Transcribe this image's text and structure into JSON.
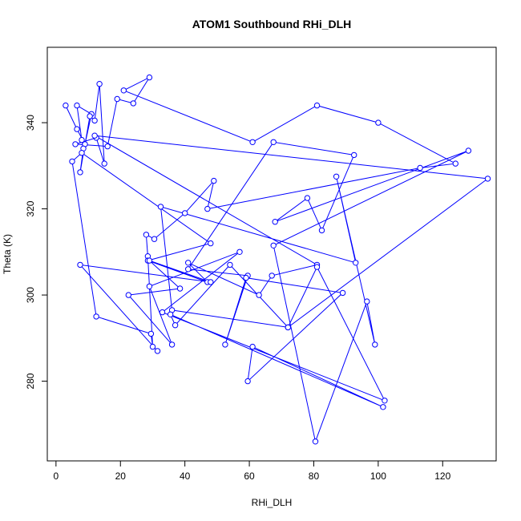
{
  "chart_data": {
    "type": "line",
    "title": "ATOM1 Southbound RHi_DLH",
    "xlabel": "RHi_DLH",
    "ylabel": "Theta (K)",
    "xlim": [
      -2.7,
      136.6
    ],
    "ylim": [
      261.5,
      357.5
    ],
    "xticks": [
      0,
      20,
      40,
      60,
      80,
      100,
      120
    ],
    "yticks": [
      280,
      300,
      320,
      340
    ],
    "grid": false,
    "series": [
      {
        "color": "#0000ff",
        "x": [
          3.0,
          6.5,
          9.0,
          11.0,
          6.5,
          8.0,
          8.5,
          7.5,
          10.5,
          12.0,
          13.5,
          15.0,
          12.5,
          6.0,
          16.0,
          19.0,
          24.0,
          29.0,
          21.0,
          61.0,
          81.0,
          100.0,
          124.0,
          113.0,
          47.0,
          49.0,
          40.0,
          30.5,
          28.0,
          28.5,
          30.0,
          29.5,
          12.5,
          5.0,
          8.0,
          48.0,
          28.5,
          47.0,
          41.0,
          63.0,
          67.0,
          81.0,
          12.0,
          134.0,
          72.0,
          36.0,
          32.5,
          93.0,
          87.0,
          99.0,
          96.5,
          80.5,
          67.5,
          128.0,
          68.0,
          78.0,
          82.5,
          92.5,
          67.5,
          41.0,
          59.5,
          52.5,
          59.0,
          89.0,
          59.5,
          61.0,
          101.5,
          35.5,
          37.0,
          54.0,
          72.0,
          81.0,
          102.0,
          33.0,
          57.0,
          29.0,
          36.0,
          22.5,
          38.5,
          29.0,
          48.0,
          7.5,
          31.5
        ],
        "y": [
          344,
          338.5,
          335,
          342,
          344,
          336,
          334,
          328.5,
          341.5,
          340.5,
          349,
          330.5,
          336.5,
          335,
          334.5,
          345.5,
          344.5,
          350.5,
          347.5,
          335.5,
          344,
          340,
          330.5,
          329.5,
          320,
          326.5,
          319,
          313,
          314,
          309,
          288,
          291,
          295,
          331,
          333,
          312,
          308,
          303,
          307.5,
          300,
          304.5,
          307,
          337,
          327,
          292.5,
          296.5,
          320.5,
          307.5,
          327.5,
          288.5,
          298.5,
          266,
          311.5,
          333.5,
          317,
          322.5,
          315,
          332.5,
          335.5,
          306,
          304.5,
          288.5,
          304,
          300.5,
          280,
          288,
          274,
          295.5,
          293,
          307,
          292.5,
          306.5,
          275.5,
          296,
          310,
          302,
          288.5,
          300,
          301.5,
          308,
          303,
          307,
          287
        ]
      }
    ]
  }
}
